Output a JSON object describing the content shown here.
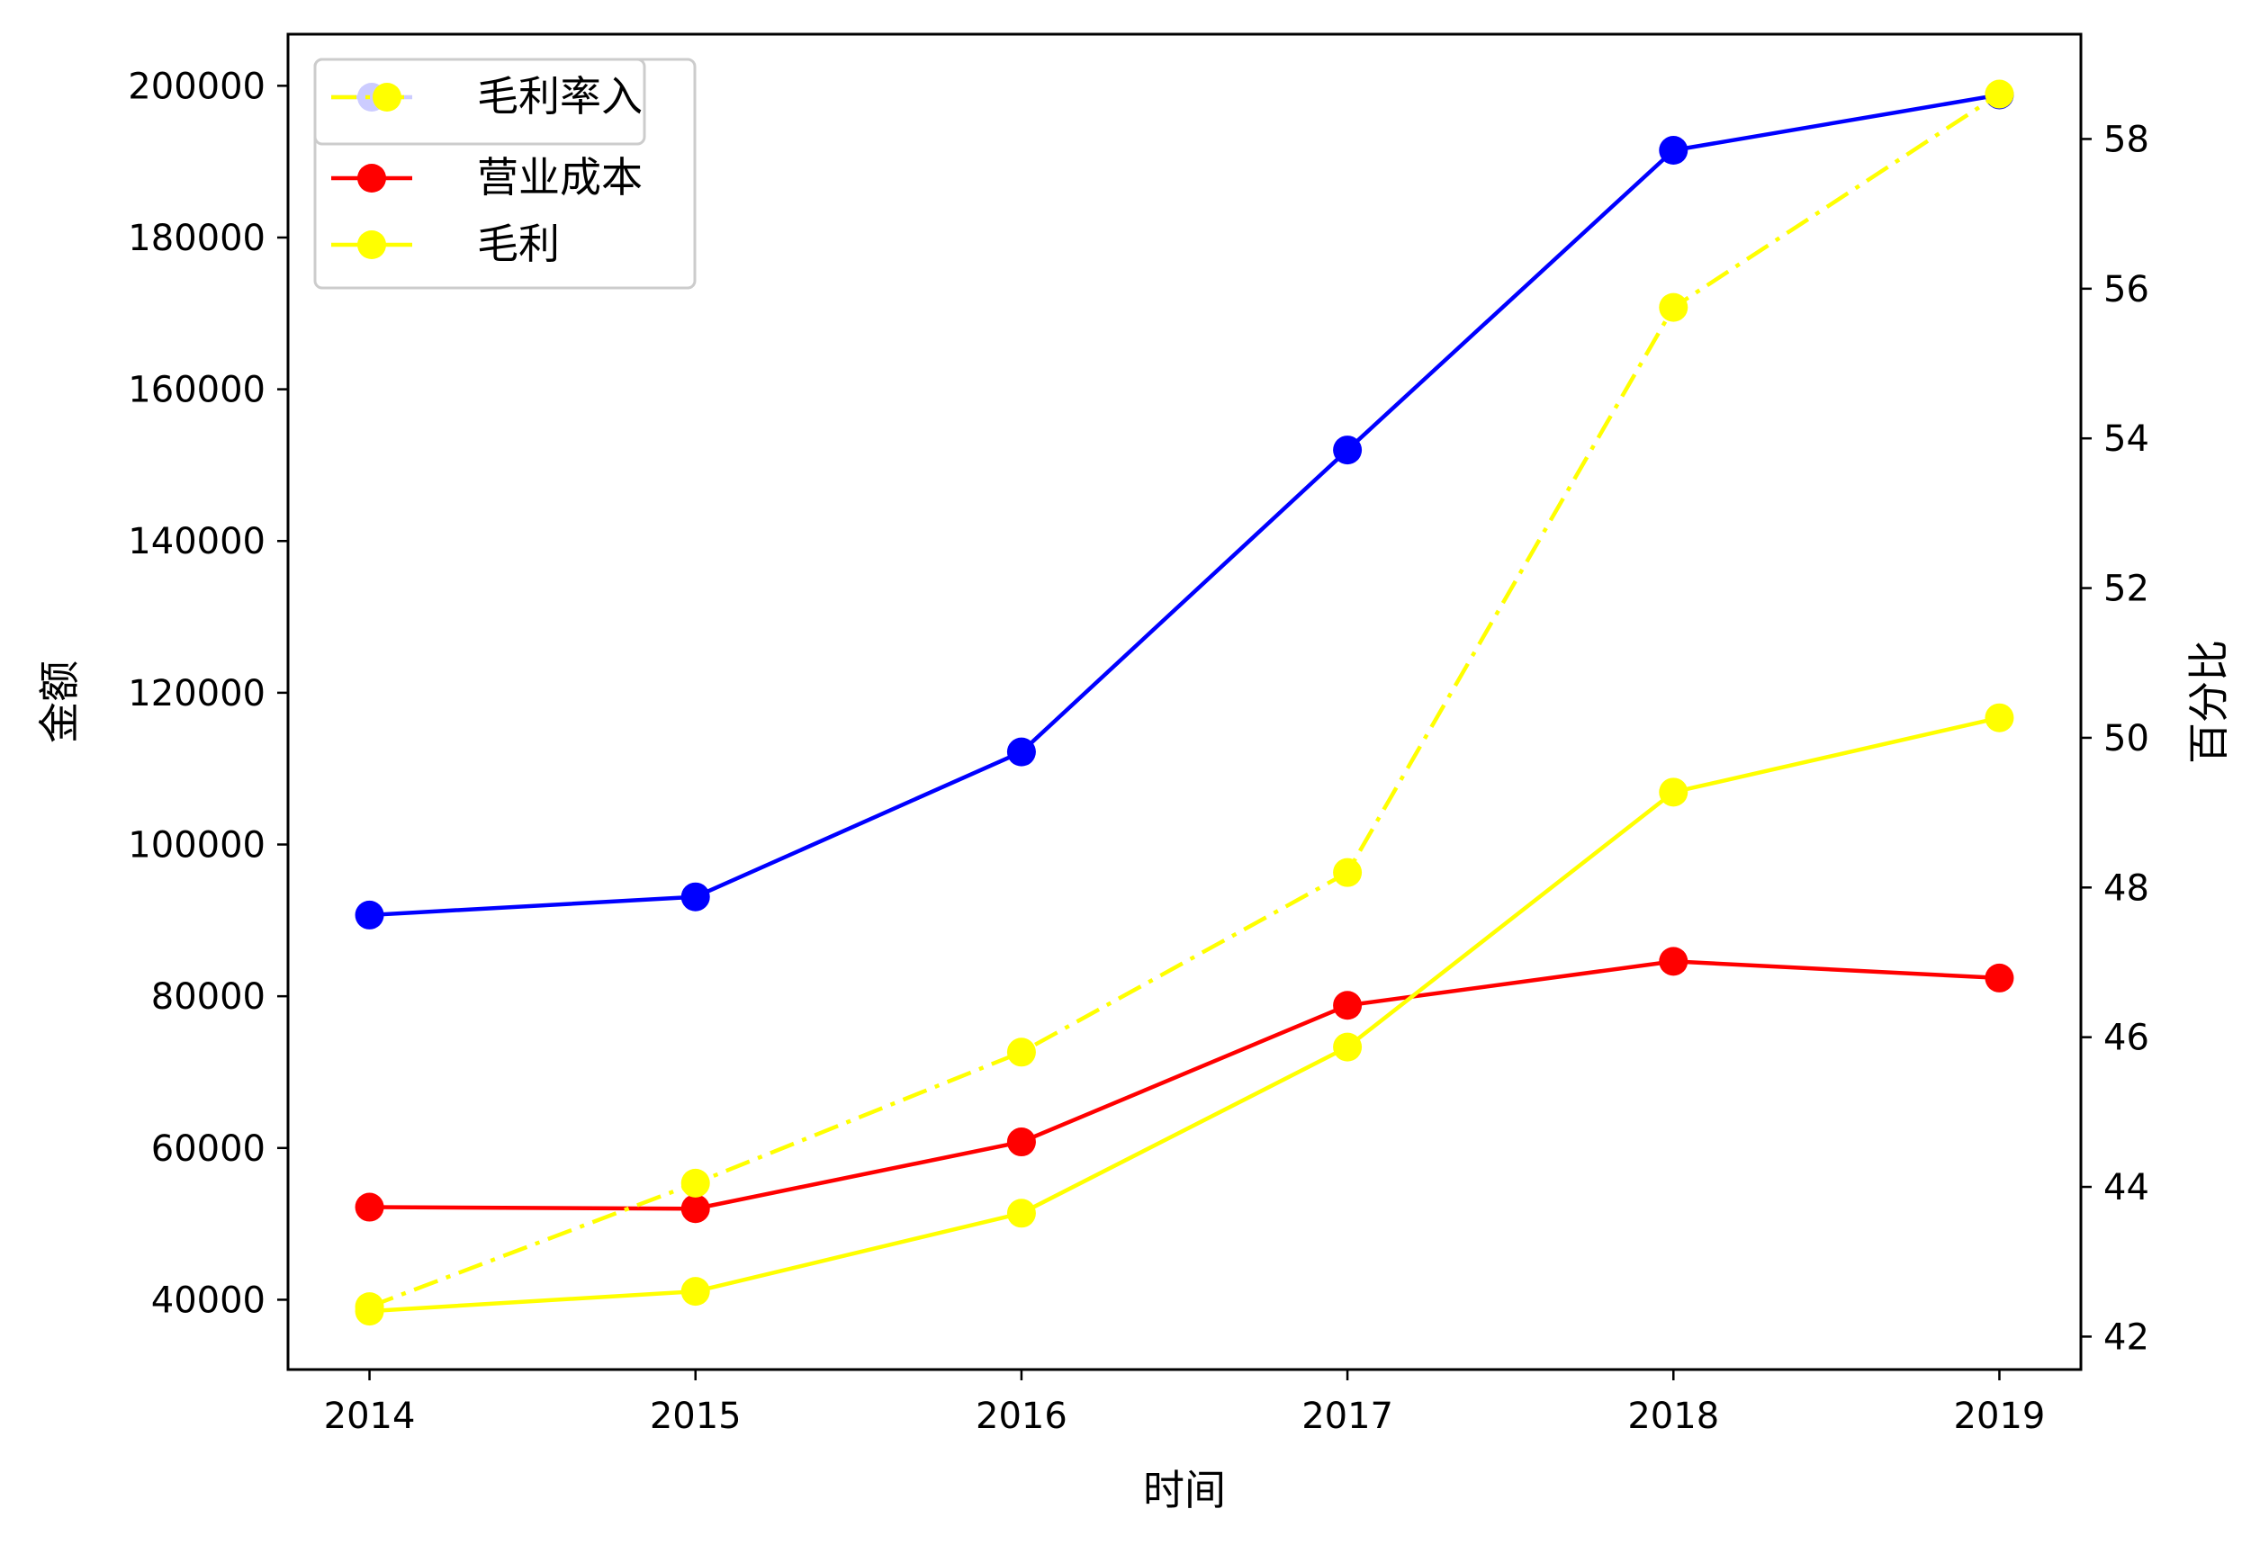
{
  "chart_data": {
    "type": "line",
    "xlabel": "时间",
    "ylabel_left": "金额",
    "ylabel_right": "百分比",
    "x": [
      2014,
      2015,
      2016,
      2017,
      2018,
      2019
    ],
    "y_left_ticks": [
      40000,
      60000,
      80000,
      100000,
      120000,
      140000,
      160000,
      180000,
      200000
    ],
    "y_right_ticks": [
      42,
      44,
      46,
      48,
      50,
      52,
      54,
      56,
      58
    ],
    "y_left_range": [
      30800,
      206800
    ],
    "y_right_range": [
      41.56,
      59.4
    ],
    "grid": false,
    "legend_position": "upper-left",
    "series": [
      {
        "name": "营业收入",
        "axis": "left",
        "color": "#0000ff",
        "line_style": "solid",
        "marker": "circle",
        "values": [
          90700,
          93100,
          112200,
          152000,
          191500,
          198800
        ]
      },
      {
        "name": "营业成本",
        "axis": "left",
        "color": "#ff0000",
        "line_style": "solid",
        "marker": "circle",
        "values": [
          52200,
          52000,
          60800,
          78800,
          84600,
          82400
        ]
      },
      {
        "name": "毛利",
        "axis": "left",
        "color": "#ffff00",
        "line_style": "solid",
        "marker": "circle",
        "values": [
          38500,
          41100,
          51400,
          73300,
          106900,
          116700
        ]
      },
      {
        "name": "毛利率",
        "axis": "right",
        "color": "#ffff00",
        "line_style": "dashdot",
        "marker": "circle",
        "values": [
          42.4,
          44.05,
          45.8,
          48.2,
          55.75,
          58.6
        ]
      }
    ],
    "legend_overlap_text": "毛利率入"
  }
}
